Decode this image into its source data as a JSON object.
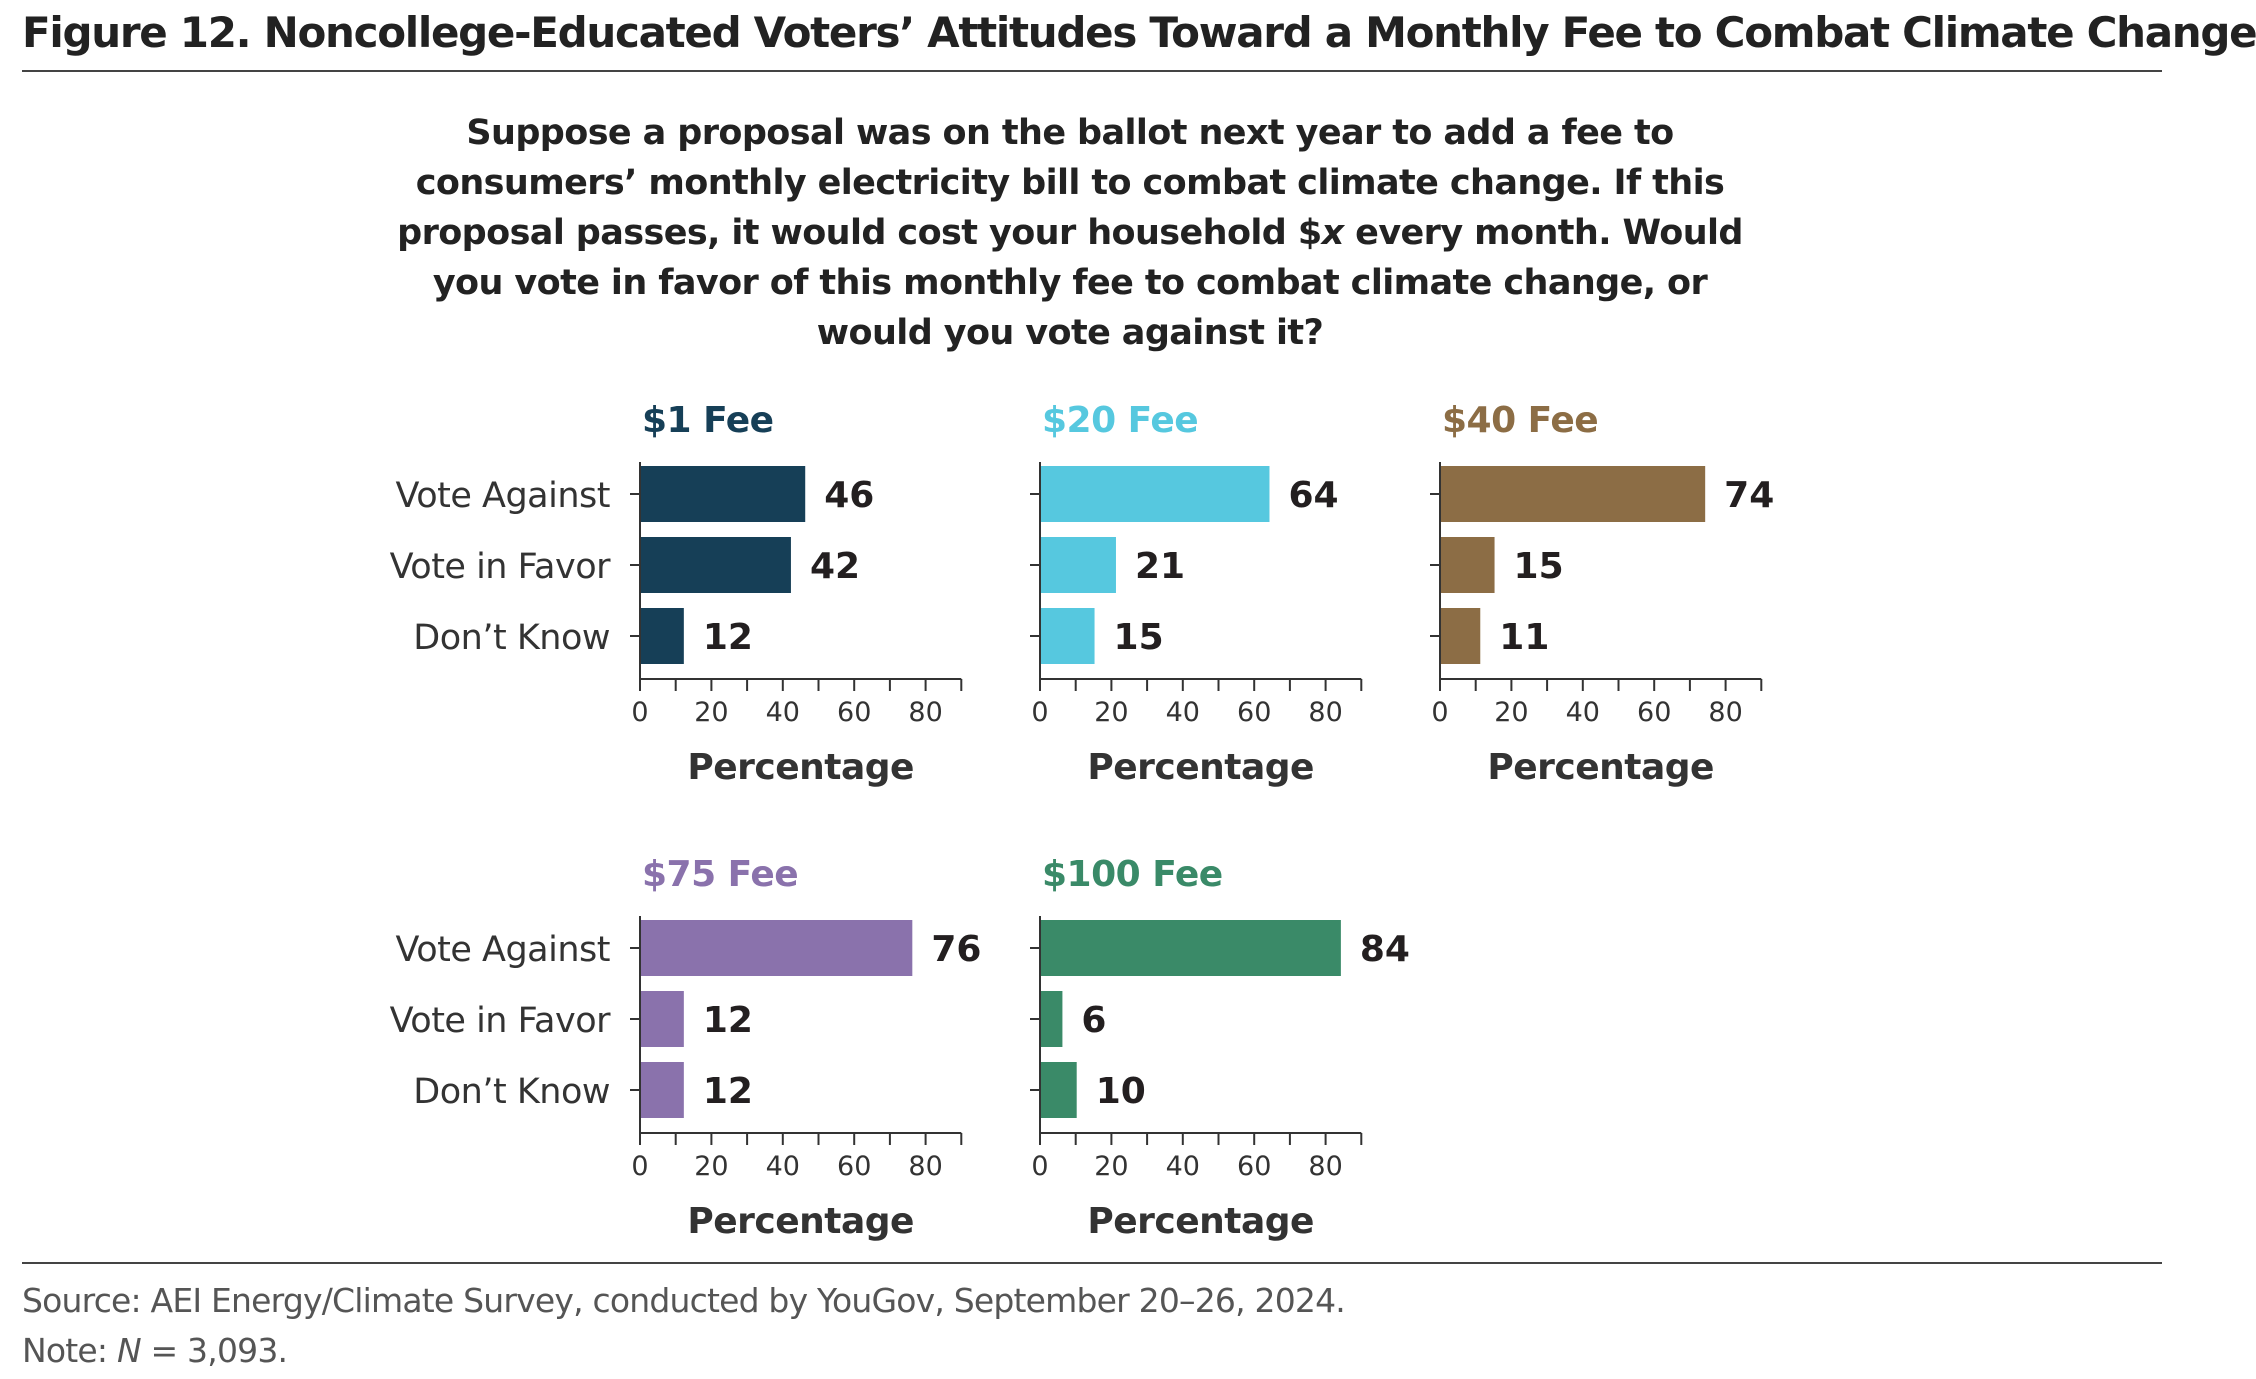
{
  "title": "Figure 12. Noncollege-Educated Voters’ Attitudes Toward a Monthly Fee to Combat Climate Change",
  "question": {
    "part1": "Suppose a proposal was on the ballot next year to add a fee to consumers’ monthly electricity bill to combat climate change. If this proposal passes, it would cost your household $",
    "variable": "x",
    "part2": " every month. Would you vote in favor of this monthly fee to combat climate change, or would you vote against it?"
  },
  "source": "Source: AEI Energy/Climate Survey, conducted by YouGov, September 20–26, 2024.",
  "note": {
    "prefix": "Note: ",
    "variable": "N",
    "suffix": " = 3,093."
  },
  "colors": {
    "fee_1": "#163f57",
    "fee_20": "#56c8df",
    "fee_40": "#8c6d45",
    "fee_75": "#8a72ac",
    "fee_100": "#3a8a68"
  },
  "chart_data": [
    {
      "type": "bar",
      "orientation": "horizontal",
      "title": "$1 Fee",
      "categories": [
        "Vote Against",
        "Vote in Favor",
        "Don’t Know"
      ],
      "values": [
        46,
        42,
        12
      ],
      "xlabel": "Percentage",
      "xlim": [
        0,
        90
      ],
      "xticks": [
        0,
        20,
        40,
        60,
        80
      ],
      "color": "#163f57"
    },
    {
      "type": "bar",
      "orientation": "horizontal",
      "title": "$20 Fee",
      "categories": [
        "Vote Against",
        "Vote in Favor",
        "Don’t Know"
      ],
      "values": [
        64,
        21,
        15
      ],
      "xlabel": "Percentage",
      "xlim": [
        0,
        90
      ],
      "xticks": [
        0,
        20,
        40,
        60,
        80
      ],
      "color": "#56c8df"
    },
    {
      "type": "bar",
      "orientation": "horizontal",
      "title": "$40 Fee",
      "categories": [
        "Vote Against",
        "Vote in Favor",
        "Don’t Know"
      ],
      "values": [
        74,
        15,
        11
      ],
      "xlabel": "Percentage",
      "xlim": [
        0,
        90
      ],
      "xticks": [
        0,
        20,
        40,
        60,
        80
      ],
      "color": "#8c6d45"
    },
    {
      "type": "bar",
      "orientation": "horizontal",
      "title": "$75 Fee",
      "categories": [
        "Vote Against",
        "Vote in Favor",
        "Don’t Know"
      ],
      "values": [
        76,
        12,
        12
      ],
      "xlabel": "Percentage",
      "xlim": [
        0,
        90
      ],
      "xticks": [
        0,
        20,
        40,
        60,
        80
      ],
      "color": "#8a72ac"
    },
    {
      "type": "bar",
      "orientation": "horizontal",
      "title": "$100 Fee",
      "categories": [
        "Vote Against",
        "Vote in Favor",
        "Don’t Know"
      ],
      "values": [
        84,
        6,
        10
      ],
      "xlabel": "Percentage",
      "xlim": [
        0,
        90
      ],
      "xticks": [
        0,
        20,
        40,
        60,
        80
      ],
      "color": "#3a8a68"
    }
  ]
}
